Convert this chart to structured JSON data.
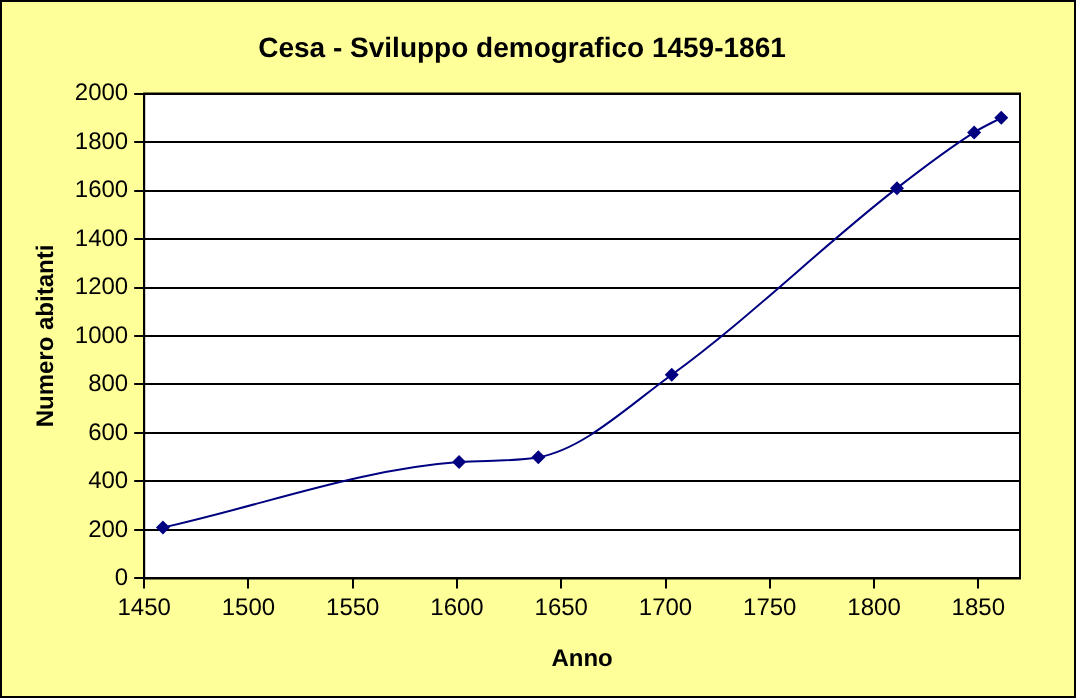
{
  "chart_data": {
    "type": "line",
    "title": "Cesa - Sviluppo demografico 1459-1861",
    "xlabel": "Anno",
    "ylabel": "Numero abitanti",
    "x": [
      1459,
      1601,
      1639,
      1703,
      1811,
      1848,
      1861
    ],
    "series": [
      {
        "color": "#000080",
        "values": [
          210,
          480,
          500,
          840,
          1610,
          1840,
          1900
        ]
      }
    ],
    "xlim": [
      1450,
      1870
    ],
    "xticks": [
      1450,
      1500,
      1550,
      1600,
      1650,
      1700,
      1750,
      1800,
      1850
    ],
    "ylim": [
      0,
      2000
    ],
    "yticks": [
      0,
      200,
      400,
      600,
      800,
      1000,
      1200,
      1400,
      1600,
      1800,
      2000
    ],
    "grid": "y",
    "legend": false,
    "marker": "diamond",
    "line_style": "solid"
  }
}
